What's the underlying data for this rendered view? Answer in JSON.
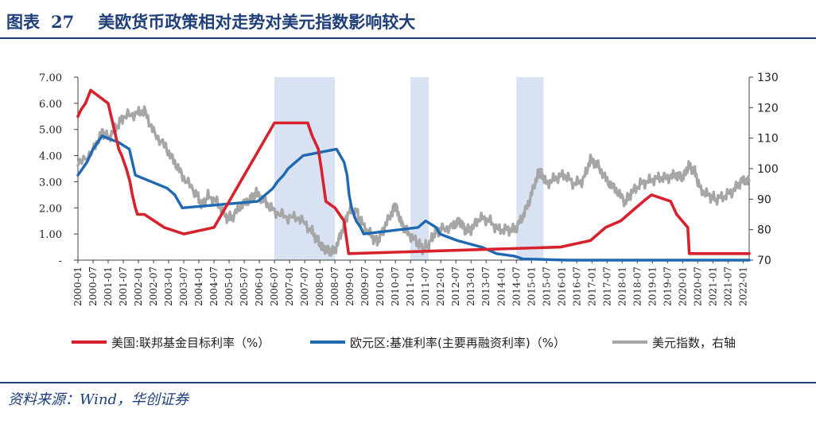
{
  "header": {
    "fig_label": "图表",
    "fig_number": "27",
    "title": "美欧货币政策相对走势对美元指数影响较大"
  },
  "source": "资料来源：Wind，华创证券",
  "chart_data": {
    "type": "line",
    "x_tick_labels": [
      "2000-01",
      "2000-07",
      "2001-01",
      "2001-07",
      "2002-01",
      "2002-07",
      "2003-01",
      "2003-07",
      "2004-01",
      "2004-07",
      "2005-01",
      "2005-07",
      "2006-01",
      "2006-07",
      "2007-01",
      "2007-07",
      "2008-01",
      "2008-07",
      "2009-01",
      "2009-07",
      "2010-01",
      "2010-07",
      "2011-01",
      "2011-07",
      "2012-01",
      "2012-07",
      "2013-01",
      "2013-07",
      "2014-01",
      "2014-07",
      "2015-01",
      "2015-07",
      "2016-01",
      "2016-07",
      "2017-01",
      "2017-07",
      "2018-01",
      "2018-07",
      "2019-01",
      "2019-07",
      "2020-01",
      "2020-07",
      "2021-01",
      "2021-07",
      "2022-01"
    ],
    "y_left": {
      "range": [
        0,
        7
      ],
      "tick_labels": [
        "-",
        "1.00",
        "2.00",
        "3.00",
        "4.00",
        "5.00",
        "6.00",
        "7.00"
      ]
    },
    "y_right": {
      "range": [
        70,
        130
      ],
      "tick_labels": [
        "70",
        "80",
        "90",
        "100",
        "110",
        "120",
        "130"
      ]
    },
    "shaded_periods": [
      [
        2006.5,
        2008.5
      ],
      [
        2011.0,
        2011.6
      ],
      [
        2014.5,
        2015.4
      ]
    ],
    "legend_position": "bottom",
    "colors": {
      "us": "#d7222d",
      "euro": "#1f68b2",
      "dxy": "#a6a6a6",
      "shade": "#d9e2f3",
      "axis": "#404040"
    },
    "series": [
      {
        "name": "美国:联邦基金目标利率（%）",
        "key": "us",
        "axis": "left",
        "points": [
          [
            2000.0,
            5.5
          ],
          [
            2000.1,
            5.75
          ],
          [
            2000.25,
            6.0
          ],
          [
            2000.42,
            6.5
          ],
          [
            2001.0,
            6.0
          ],
          [
            2001.1,
            5.5
          ],
          [
            2001.2,
            5.0
          ],
          [
            2001.35,
            4.25
          ],
          [
            2001.45,
            4.0
          ],
          [
            2001.6,
            3.5
          ],
          [
            2001.72,
            3.0
          ],
          [
            2001.8,
            2.5
          ],
          [
            2001.9,
            2.0
          ],
          [
            2001.97,
            1.75
          ],
          [
            2002.2,
            1.75
          ],
          [
            2002.85,
            1.25
          ],
          [
            2003.5,
            1.0
          ],
          [
            2004.5,
            1.25
          ],
          [
            2004.75,
            1.75
          ],
          [
            2005.0,
            2.25
          ],
          [
            2005.5,
            3.25
          ],
          [
            2006.0,
            4.25
          ],
          [
            2006.5,
            5.25
          ],
          [
            2007.6,
            5.25
          ],
          [
            2007.75,
            4.75
          ],
          [
            2007.95,
            4.25
          ],
          [
            2008.05,
            3.5
          ],
          [
            2008.2,
            2.25
          ],
          [
            2008.5,
            2.0
          ],
          [
            2008.8,
            1.5
          ],
          [
            2008.95,
            0.25
          ],
          [
            2015.95,
            0.5
          ],
          [
            2016.95,
            0.75
          ],
          [
            2017.2,
            1.0
          ],
          [
            2017.45,
            1.25
          ],
          [
            2017.95,
            1.5
          ],
          [
            2018.2,
            1.75
          ],
          [
            2018.45,
            2.0
          ],
          [
            2018.7,
            2.25
          ],
          [
            2018.97,
            2.5
          ],
          [
            2019.6,
            2.25
          ],
          [
            2019.7,
            2.0
          ],
          [
            2019.8,
            1.75
          ],
          [
            2020.17,
            1.25
          ],
          [
            2020.22,
            0.25
          ],
          [
            2022.2,
            0.25
          ]
        ]
      },
      {
        "name": "欧元区:基准利率(主要再融资利率)（%）",
        "key": "euro",
        "axis": "left",
        "points": [
          [
            2000.0,
            3.25
          ],
          [
            2000.15,
            3.5
          ],
          [
            2000.3,
            3.75
          ],
          [
            2000.5,
            4.25
          ],
          [
            2000.8,
            4.75
          ],
          [
            2001.35,
            4.5
          ],
          [
            2001.7,
            4.25
          ],
          [
            2001.8,
            3.75
          ],
          [
            2001.9,
            3.25
          ],
          [
            2002.95,
            2.75
          ],
          [
            2003.2,
            2.5
          ],
          [
            2003.45,
            2.0
          ],
          [
            2005.95,
            2.25
          ],
          [
            2006.2,
            2.5
          ],
          [
            2006.45,
            2.75
          ],
          [
            2006.6,
            3.0
          ],
          [
            2006.8,
            3.25
          ],
          [
            2006.95,
            3.5
          ],
          [
            2007.2,
            3.75
          ],
          [
            2007.45,
            4.0
          ],
          [
            2008.55,
            4.25
          ],
          [
            2008.8,
            3.75
          ],
          [
            2008.9,
            3.25
          ],
          [
            2008.97,
            2.5
          ],
          [
            2009.05,
            2.0
          ],
          [
            2009.2,
            1.5
          ],
          [
            2009.35,
            1.25
          ],
          [
            2009.45,
            1.0
          ],
          [
            2011.25,
            1.25
          ],
          [
            2011.5,
            1.5
          ],
          [
            2011.85,
            1.25
          ],
          [
            2011.97,
            1.0
          ],
          [
            2012.55,
            0.75
          ],
          [
            2013.35,
            0.5
          ],
          [
            2013.85,
            0.25
          ],
          [
            2014.45,
            0.15
          ],
          [
            2014.7,
            0.05
          ],
          [
            2016.2,
            0.0
          ],
          [
            2022.2,
            0.0
          ]
        ]
      },
      {
        "name": "美元指数，右轴",
        "key": "dxy",
        "axis": "right",
        "points": [
          [
            2000.0,
            101
          ],
          [
            2000.5,
            106
          ],
          [
            2000.8,
            112
          ],
          [
            2001.0,
            110
          ],
          [
            2001.3,
            114
          ],
          [
            2001.5,
            117
          ],
          [
            2001.9,
            118
          ],
          [
            2002.2,
            119
          ],
          [
            2002.5,
            112
          ],
          [
            2002.9,
            107
          ],
          [
            2003.2,
            102
          ],
          [
            2003.5,
            97
          ],
          [
            2003.9,
            92
          ],
          [
            2004.1,
            88
          ],
          [
            2004.3,
            91
          ],
          [
            2004.6,
            89
          ],
          [
            2004.9,
            84
          ],
          [
            2005.1,
            84
          ],
          [
            2005.4,
            88
          ],
          [
            2005.7,
            90
          ],
          [
            2005.9,
            92
          ],
          [
            2006.2,
            89
          ],
          [
            2006.5,
            86
          ],
          [
            2006.9,
            84
          ],
          [
            2007.3,
            84
          ],
          [
            2007.7,
            80
          ],
          [
            2007.9,
            77
          ],
          [
            2008.1,
            74
          ],
          [
            2008.3,
            73
          ],
          [
            2008.5,
            73
          ],
          [
            2008.75,
            80
          ],
          [
            2008.95,
            86
          ],
          [
            2009.2,
            86
          ],
          [
            2009.4,
            82
          ],
          [
            2009.7,
            78
          ],
          [
            2009.9,
            76
          ],
          [
            2010.1,
            80
          ],
          [
            2010.4,
            86
          ],
          [
            2010.5,
            88
          ],
          [
            2010.7,
            82
          ],
          [
            2010.9,
            79
          ],
          [
            2011.2,
            76
          ],
          [
            2011.4,
            74
          ],
          [
            2011.6,
            75
          ],
          [
            2011.8,
            79
          ],
          [
            2012.0,
            80
          ],
          [
            2012.4,
            81
          ],
          [
            2012.6,
            83
          ],
          [
            2012.8,
            80
          ],
          [
            2013.0,
            80
          ],
          [
            2013.3,
            84
          ],
          [
            2013.6,
            83
          ],
          [
            2013.9,
            80
          ],
          [
            2014.2,
            80
          ],
          [
            2014.45,
            80
          ],
          [
            2014.7,
            84
          ],
          [
            2014.95,
            90
          ],
          [
            2015.2,
            98
          ],
          [
            2015.3,
            99
          ],
          [
            2015.5,
            95
          ],
          [
            2015.8,
            97
          ],
          [
            2016.1,
            98
          ],
          [
            2016.4,
            95
          ],
          [
            2016.7,
            96
          ],
          [
            2016.95,
            103
          ],
          [
            2017.2,
            101
          ],
          [
            2017.5,
            96
          ],
          [
            2017.8,
            93
          ],
          [
            2018.1,
            89
          ],
          [
            2018.3,
            92
          ],
          [
            2018.6,
            95
          ],
          [
            2018.9,
            96
          ],
          [
            2019.2,
            97
          ],
          [
            2019.5,
            97
          ],
          [
            2019.8,
            98
          ],
          [
            2020.0,
            97
          ],
          [
            2020.2,
            101
          ],
          [
            2020.4,
            99
          ],
          [
            2020.6,
            93
          ],
          [
            2020.9,
            91
          ],
          [
            2021.1,
            90
          ],
          [
            2021.4,
            91
          ],
          [
            2021.7,
            93
          ],
          [
            2021.95,
            96
          ],
          [
            2022.2,
            96
          ]
        ]
      }
    ]
  }
}
